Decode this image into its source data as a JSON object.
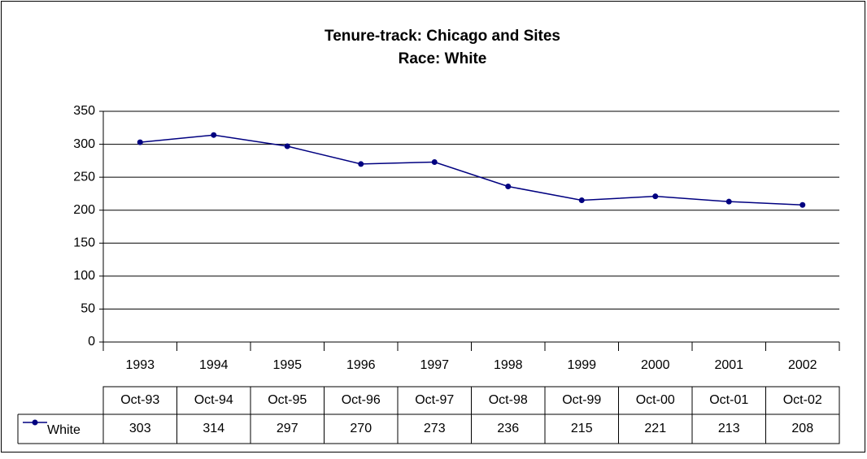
{
  "chart_data": {
    "type": "line",
    "title": "Tenure-track: Chicago and Sites",
    "subtitle": "Race: White",
    "categories": [
      "1993",
      "1994",
      "1995",
      "1996",
      "1997",
      "1998",
      "1999",
      "2000",
      "2001",
      "2002"
    ],
    "table_columns": [
      "Oct-93",
      "Oct-94",
      "Oct-95",
      "Oct-96",
      "Oct-97",
      "Oct-98",
      "Oct-99",
      "Oct-00",
      "Oct-01",
      "Oct-02"
    ],
    "series": [
      {
        "name": "White",
        "color": "#000080",
        "values": [
          303,
          314,
          297,
          270,
          273,
          236,
          215,
          221,
          213,
          208
        ]
      }
    ],
    "ylim": [
      0,
      350
    ],
    "yticks": [
      0,
      50,
      100,
      150,
      200,
      250,
      300,
      350
    ],
    "grid": true
  }
}
